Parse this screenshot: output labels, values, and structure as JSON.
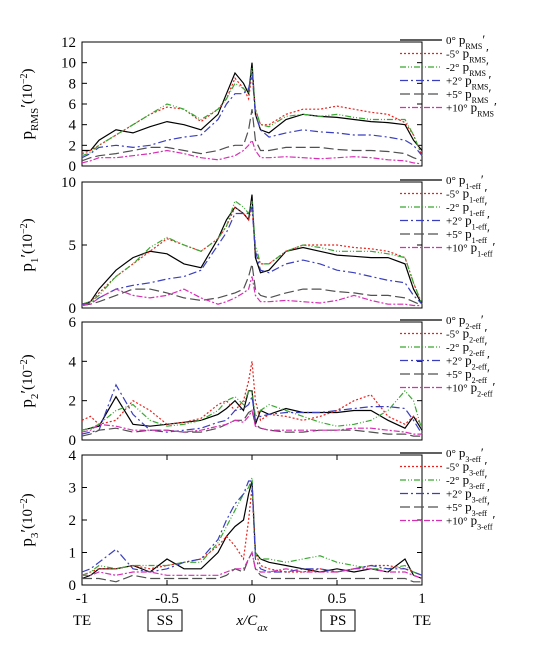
{
  "chart_data": [
    {
      "type": "line",
      "ylabel": [
        "p",
        "RMS",
        "′",
        "(10",
        "−2",
        ")"
      ],
      "legend_symbol": [
        "p",
        "RMS",
        "′"
      ],
      "xlim": [
        -1,
        1
      ],
      "ylim": [
        0,
        12
      ],
      "yticks": [
        0,
        2,
        4,
        6,
        8,
        10,
        12
      ],
      "x": [
        -1,
        -0.95,
        -0.9,
        -0.8,
        -0.7,
        -0.6,
        -0.5,
        -0.4,
        -0.3,
        -0.2,
        -0.15,
        -0.1,
        -0.05,
        -0.02,
        0,
        0.02,
        0.05,
        0.1,
        0.2,
        0.3,
        0.4,
        0.5,
        0.6,
        0.7,
        0.8,
        0.9,
        0.95,
        1
      ],
      "series": [
        {
          "name": "0°",
          "color": "#000000",
          "values": [
            1.5,
            1.5,
            2.5,
            3.5,
            3.2,
            3.8,
            4.3,
            4.0,
            3.5,
            5.0,
            7.0,
            9.0,
            8.0,
            7.0,
            10.0,
            5.0,
            3.5,
            3.2,
            4.5,
            5.0,
            4.8,
            4.7,
            4.5,
            4.3,
            4.2,
            4.0,
            2.5,
            1.5
          ]
        },
        {
          "name": "-5°",
          "color": "#e8231f",
          "values": [
            1.2,
            1.5,
            2.0,
            3.0,
            4.0,
            5.0,
            5.7,
            5.5,
            4.3,
            5.5,
            6.5,
            8.5,
            7.5,
            6.5,
            9.0,
            5.5,
            4.0,
            4.0,
            5.0,
            5.5,
            5.5,
            5.8,
            5.5,
            5.2,
            5.0,
            4.2,
            3.0,
            1.0
          ]
        },
        {
          "name": "-2°",
          "color": "#3aa832",
          "values": [
            1.0,
            1.3,
            2.0,
            3.0,
            4.0,
            5.0,
            6.0,
            5.5,
            4.5,
            5.5,
            6.5,
            8.0,
            7.5,
            7.0,
            9.5,
            5.5,
            4.0,
            3.8,
            4.8,
            5.0,
            4.8,
            5.0,
            4.7,
            4.5,
            4.5,
            4.5,
            3.0,
            1.0
          ]
        },
        {
          "name": "+2°",
          "color": "#3a3fbf",
          "values": [
            0.8,
            1.2,
            1.8,
            2.0,
            1.8,
            2.0,
            2.5,
            2.8,
            3.0,
            4.5,
            6.0,
            7.0,
            7.0,
            7.5,
            9.0,
            5.0,
            3.5,
            2.8,
            3.2,
            3.5,
            3.3,
            3.2,
            3.0,
            3.0,
            2.8,
            2.5,
            2.0,
            1.0
          ]
        },
        {
          "name": "+5°",
          "color": "#505050",
          "values": [
            0.5,
            0.8,
            1.0,
            1.2,
            1.5,
            1.8,
            1.8,
            1.5,
            1.2,
            1.5,
            1.8,
            2.0,
            2.0,
            3.5,
            5.5,
            2.5,
            1.5,
            1.5,
            1.8,
            1.8,
            1.8,
            1.6,
            1.5,
            1.5,
            1.4,
            1.2,
            0.8,
            0.5
          ]
        },
        {
          "name": "+10°",
          "color": "#d62fb4",
          "values": [
            0.3,
            0.5,
            0.8,
            0.8,
            1.0,
            1.2,
            1.5,
            1.2,
            0.8,
            0.6,
            0.8,
            1.0,
            1.5,
            2.0,
            2.5,
            1.5,
            0.8,
            0.8,
            0.9,
            0.8,
            0.7,
            0.8,
            0.9,
            0.8,
            0.6,
            0.5,
            0.3,
            0.2
          ]
        }
      ]
    },
    {
      "type": "line",
      "ylabel": [
        "p",
        "1",
        "′",
        "(10",
        "−2",
        ")"
      ],
      "legend_symbol": [
        "p",
        "1-eff",
        "′"
      ],
      "xlim": [
        -1,
        1
      ],
      "ylim": [
        0,
        10
      ],
      "yticks": [
        0,
        5,
        10
      ],
      "x": [
        -1,
        -0.95,
        -0.9,
        -0.8,
        -0.7,
        -0.6,
        -0.5,
        -0.4,
        -0.3,
        -0.2,
        -0.15,
        -0.1,
        -0.05,
        -0.02,
        0,
        0.02,
        0.05,
        0.1,
        0.2,
        0.3,
        0.4,
        0.5,
        0.6,
        0.7,
        0.8,
        0.9,
        0.95,
        1
      ],
      "series": [
        {
          "name": "0°",
          "color": "#000000",
          "values": [
            0.3,
            0.5,
            1.5,
            3.0,
            4.0,
            4.5,
            4.3,
            3.5,
            3.2,
            5.5,
            7.0,
            8.0,
            7.5,
            7.0,
            9.0,
            4.0,
            2.8,
            3.0,
            4.5,
            4.8,
            4.5,
            4.2,
            4.1,
            4.0,
            4.0,
            3.5,
            1.5,
            0.3
          ]
        },
        {
          "name": "-5°",
          "color": "#e8231f",
          "values": [
            0.3,
            0.5,
            1.2,
            2.5,
            3.5,
            4.5,
            5.5,
            5.0,
            4.5,
            5.5,
            6.5,
            8.0,
            7.5,
            7.0,
            8.0,
            4.5,
            3.5,
            3.5,
            4.5,
            5.0,
            5.0,
            5.0,
            4.8,
            4.7,
            4.5,
            4.0,
            2.0,
            0.3
          ]
        },
        {
          "name": "-2°",
          "color": "#3aa832",
          "values": [
            0.3,
            0.5,
            1.0,
            2.5,
            3.5,
            4.8,
            5.6,
            5.0,
            4.5,
            5.5,
            6.5,
            8.5,
            8.0,
            7.5,
            8.5,
            5.0,
            3.5,
            3.5,
            4.5,
            5.0,
            4.8,
            4.5,
            4.5,
            4.5,
            4.3,
            4.0,
            2.0,
            0.3
          ]
        },
        {
          "name": "+2°",
          "color": "#3a3fbf",
          "values": [
            0.3,
            0.4,
            0.8,
            1.5,
            1.8,
            2.0,
            2.3,
            2.5,
            3.0,
            5.0,
            6.0,
            7.5,
            7.5,
            7.5,
            8.0,
            4.5,
            3.0,
            2.8,
            3.5,
            3.8,
            3.5,
            3.0,
            2.8,
            2.5,
            2.2,
            2.0,
            1.0,
            0.3
          ]
        },
        {
          "name": "+5°",
          "color": "#505050",
          "values": [
            0.2,
            0.3,
            0.5,
            1.0,
            1.5,
            1.5,
            1.2,
            0.8,
            0.6,
            0.8,
            1.0,
            1.2,
            1.5,
            2.5,
            3.5,
            1.5,
            1.0,
            0.8,
            1.2,
            1.5,
            1.5,
            1.3,
            1.2,
            1.0,
            1.0,
            0.8,
            0.5,
            0.2
          ]
        },
        {
          "name": "+10°",
          "color": "#d62fb4",
          "values": [
            0.2,
            0.3,
            0.8,
            1.5,
            1.0,
            0.8,
            1.0,
            1.5,
            0.8,
            0.3,
            0.5,
            0.8,
            1.2,
            1.5,
            2.5,
            1.0,
            0.5,
            0.5,
            0.6,
            0.5,
            0.4,
            0.6,
            1.0,
            0.6,
            0.3,
            0.3,
            0.2,
            0.2
          ]
        }
      ]
    },
    {
      "type": "line",
      "ylabel": [
        "p",
        "2",
        "′",
        "(10",
        "−2",
        ")"
      ],
      "legend_symbol": [
        "p",
        "2-eff",
        "′"
      ],
      "xlim": [
        -1,
        1
      ],
      "ylim": [
        0,
        6
      ],
      "yticks": [
        0,
        2,
        4,
        6
      ],
      "x": [
        -1,
        -0.95,
        -0.9,
        -0.8,
        -0.7,
        -0.6,
        -0.5,
        -0.4,
        -0.3,
        -0.2,
        -0.15,
        -0.1,
        -0.05,
        -0.02,
        0,
        0.02,
        0.05,
        0.1,
        0.2,
        0.3,
        0.4,
        0.5,
        0.6,
        0.7,
        0.8,
        0.9,
        0.95,
        1
      ],
      "series": [
        {
          "name": "0°",
          "color": "#000000",
          "values": [
            0.5,
            0.6,
            0.7,
            2.2,
            0.8,
            0.7,
            0.8,
            0.9,
            1.0,
            1.3,
            1.6,
            2.0,
            1.5,
            2.5,
            2.5,
            0.8,
            1.5,
            1.3,
            1.6,
            1.4,
            1.4,
            1.4,
            1.5,
            1.5,
            1.0,
            0.6,
            1.2,
            0.5
          ]
        },
        {
          "name": "-5°",
          "color": "#e8231f",
          "values": [
            1.0,
            1.2,
            0.8,
            1.0,
            2.0,
            1.5,
            0.8,
            0.9,
            1.1,
            1.8,
            2.0,
            1.5,
            2.0,
            3.0,
            4.0,
            2.0,
            1.0,
            1.3,
            1.2,
            1.0,
            1.2,
            1.5,
            2.0,
            2.3,
            1.2,
            0.8,
            1.2,
            0.8
          ]
        },
        {
          "name": "-2°",
          "color": "#3aa832",
          "values": [
            0.5,
            0.6,
            0.8,
            1.5,
            1.8,
            1.0,
            0.7,
            0.8,
            1.0,
            1.5,
            2.0,
            2.2,
            1.8,
            2.5,
            2.5,
            1.2,
            1.5,
            1.8,
            1.5,
            1.2,
            0.9,
            0.7,
            0.8,
            1.0,
            1.5,
            2.5,
            2.0,
            0.5
          ]
        },
        {
          "name": "+2°",
          "color": "#3a3fbf",
          "values": [
            0.3,
            0.4,
            0.5,
            2.8,
            1.3,
            0.5,
            0.4,
            0.5,
            0.6,
            0.9,
            1.0,
            1.5,
            1.6,
            1.8,
            2.2,
            1.0,
            1.2,
            1.3,
            1.4,
            1.4,
            1.4,
            1.5,
            1.6,
            1.7,
            1.7,
            1.6,
            1.0,
            0.3
          ]
        },
        {
          "name": "+5°",
          "color": "#505050",
          "values": [
            0.2,
            0.3,
            0.5,
            0.6,
            0.4,
            0.5,
            0.5,
            0.4,
            0.4,
            0.6,
            0.8,
            1.0,
            1.0,
            1.4,
            1.5,
            0.8,
            0.6,
            0.5,
            0.4,
            0.4,
            0.5,
            0.5,
            0.5,
            0.4,
            0.3,
            0.3,
            0.2,
            0.2
          ]
        },
        {
          "name": "+10°",
          "color": "#d62fb4",
          "values": [
            0.4,
            0.5,
            0.8,
            0.7,
            0.5,
            0.5,
            0.5,
            0.4,
            0.5,
            0.7,
            0.8,
            1.0,
            0.9,
            1.2,
            1.5,
            0.7,
            0.6,
            0.5,
            0.5,
            0.5,
            0.5,
            0.5,
            0.6,
            0.6,
            0.5,
            0.4,
            0.3,
            0.3
          ]
        }
      ]
    },
    {
      "type": "line",
      "ylabel": [
        "p",
        "3",
        "′",
        "(10",
        "−2",
        ")"
      ],
      "legend_symbol": [
        "p",
        "3-eff",
        "′"
      ],
      "xlabel": [
        "x/C",
        "ax"
      ],
      "region_labels": [
        "TE",
        "SS",
        "PS",
        "TE"
      ],
      "xlim": [
        -1,
        1
      ],
      "xticks": [
        -1,
        -0.5,
        0,
        0.5,
        1
      ],
      "ylim": [
        0,
        4
      ],
      "yticks": [
        0,
        1,
        2,
        3,
        4
      ],
      "x": [
        -1,
        -0.95,
        -0.9,
        -0.8,
        -0.7,
        -0.6,
        -0.5,
        -0.4,
        -0.3,
        -0.2,
        -0.15,
        -0.1,
        -0.05,
        -0.02,
        0,
        0.02,
        0.05,
        0.1,
        0.2,
        0.3,
        0.4,
        0.5,
        0.6,
        0.7,
        0.8,
        0.9,
        0.95,
        1
      ],
      "series": [
        {
          "name": "0°",
          "color": "#000000",
          "values": [
            0.2,
            0.3,
            0.5,
            0.5,
            0.6,
            0.4,
            0.8,
            0.5,
            0.5,
            1.0,
            1.5,
            1.8,
            2.0,
            2.8,
            3.2,
            1.0,
            0.8,
            0.7,
            0.6,
            0.5,
            0.4,
            0.5,
            0.4,
            0.5,
            0.4,
            0.8,
            0.3,
            0.2
          ]
        },
        {
          "name": "-5°",
          "color": "#e8231f",
          "values": [
            0.3,
            0.4,
            0.5,
            0.5,
            0.6,
            0.5,
            0.6,
            0.7,
            0.8,
            1.2,
            1.5,
            1.2,
            0.8,
            2.0,
            3.0,
            1.0,
            0.6,
            0.5,
            0.4,
            0.4,
            0.5,
            0.4,
            0.5,
            0.6,
            0.6,
            0.5,
            0.4,
            0.3
          ]
        },
        {
          "name": "-2°",
          "color": "#3aa832",
          "values": [
            0.3,
            0.4,
            0.6,
            0.5,
            0.6,
            0.6,
            0.6,
            0.7,
            0.7,
            1.3,
            1.8,
            2.3,
            2.8,
            3.0,
            3.3,
            1.0,
            0.8,
            0.8,
            0.7,
            0.8,
            0.9,
            0.7,
            0.6,
            0.5,
            0.5,
            0.6,
            0.4,
            0.3
          ]
        },
        {
          "name": "+2°",
          "color": "#3a3fbf",
          "values": [
            0.4,
            0.5,
            0.7,
            1.1,
            0.5,
            0.4,
            0.5,
            0.7,
            0.8,
            1.4,
            2.0,
            2.5,
            2.8,
            3.2,
            3.2,
            0.8,
            0.5,
            0.4,
            0.4,
            0.5,
            0.5,
            0.4,
            0.5,
            0.6,
            0.5,
            0.5,
            0.4,
            0.3
          ]
        },
        {
          "name": "+5°",
          "color": "#505050",
          "values": [
            0.2,
            0.2,
            0.2,
            0.1,
            0.3,
            0.2,
            0.2,
            0.2,
            0.2,
            0.2,
            0.3,
            0.5,
            0.4,
            0.8,
            1.0,
            0.5,
            0.3,
            0.2,
            0.2,
            0.2,
            0.2,
            0.2,
            0.2,
            0.2,
            0.2,
            0.2,
            0.1,
            0.1
          ]
        },
        {
          "name": "+10°",
          "color": "#d62fb4",
          "values": [
            0.3,
            0.3,
            0.4,
            0.3,
            0.4,
            0.4,
            0.3,
            0.3,
            0.3,
            0.3,
            0.4,
            0.5,
            0.5,
            0.8,
            1.0,
            0.5,
            0.4,
            0.4,
            0.5,
            0.4,
            0.4,
            0.4,
            0.5,
            0.5,
            0.4,
            0.4,
            0.3,
            0.2
          ]
        }
      ]
    }
  ]
}
